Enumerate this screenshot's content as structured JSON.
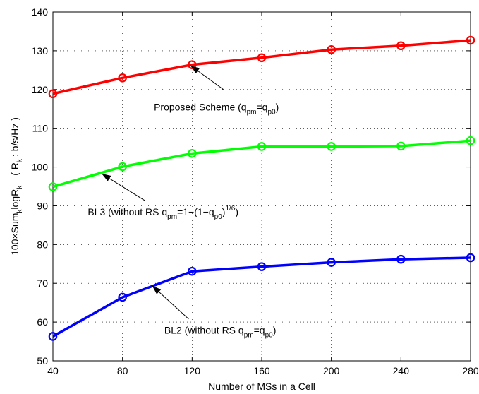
{
  "chart_data": {
    "type": "line",
    "xlabel": "Number of MSs in a Cell",
    "ylabel": {
      "main": "100×Sum",
      "sub1": "k",
      "mid": "logR",
      "sub2": "k",
      "unit_open": "( R",
      "unit_sub": "k",
      "unit_close": ": b/s/Hz )"
    },
    "x": [
      40,
      80,
      120,
      160,
      200,
      240,
      280
    ],
    "xlim": [
      40,
      280
    ],
    "ylim": [
      50,
      140
    ],
    "xticks": [
      40,
      80,
      120,
      160,
      200,
      240,
      280
    ],
    "yticks": [
      50,
      60,
      70,
      80,
      90,
      100,
      110,
      120,
      130,
      140
    ],
    "grid": true,
    "series": [
      {
        "color": "#ff0000",
        "values": [
          118.9,
          123.0,
          126.4,
          128.2,
          130.3,
          131.3,
          132.7
        ]
      },
      {
        "color": "#00ff00",
        "values": [
          94.9,
          100.1,
          103.5,
          105.3,
          105.3,
          105.4,
          106.8
        ]
      },
      {
        "color": "#0000ff",
        "values": [
          56.3,
          66.4,
          73.1,
          74.3,
          75.4,
          76.2,
          76.6
        ]
      }
    ],
    "annotations": [
      {
        "series": 0,
        "arrow_from": [
          138,
          120.0
        ],
        "arrow_to": [
          119,
          126.2
        ],
        "label_at": [
          98,
          114.6
        ],
        "parts": [
          {
            "t": "Proposed Scheme (q",
            "s": "n"
          },
          {
            "t": "pm",
            "s": "sub"
          },
          {
            "t": "=q",
            "s": "n"
          },
          {
            "t": "p0",
            "s": "sub"
          },
          {
            "t": ")",
            "s": "n"
          }
        ]
      },
      {
        "series": 1,
        "arrow_from": [
          93,
          91.3
        ],
        "arrow_to": [
          68,
          98.3
        ],
        "label_at": [
          60,
          87.5
        ],
        "parts": [
          {
            "t": "BL3 (without RS q",
            "s": "n"
          },
          {
            "t": "pm",
            "s": "sub"
          },
          {
            "t": "=1−(1−q",
            "s": "n"
          },
          {
            "t": "p0",
            "s": "sub"
          },
          {
            "t": ")",
            "s": "n"
          },
          {
            "t": "1/6",
            "s": "sup"
          },
          {
            "t": ")",
            "s": "n"
          }
        ]
      },
      {
        "series": 2,
        "arrow_from": [
          118,
          60.8
        ],
        "arrow_to": [
          97,
          69.4
        ],
        "label_at": [
          104,
          57.0
        ],
        "parts": [
          {
            "t": "BL2 (without RS q",
            "s": "n"
          },
          {
            "t": "pm",
            "s": "sub"
          },
          {
            "t": "=q",
            "s": "n"
          },
          {
            "t": "p0",
            "s": "sub"
          },
          {
            "t": ")",
            "s": "n"
          }
        ]
      }
    ]
  }
}
